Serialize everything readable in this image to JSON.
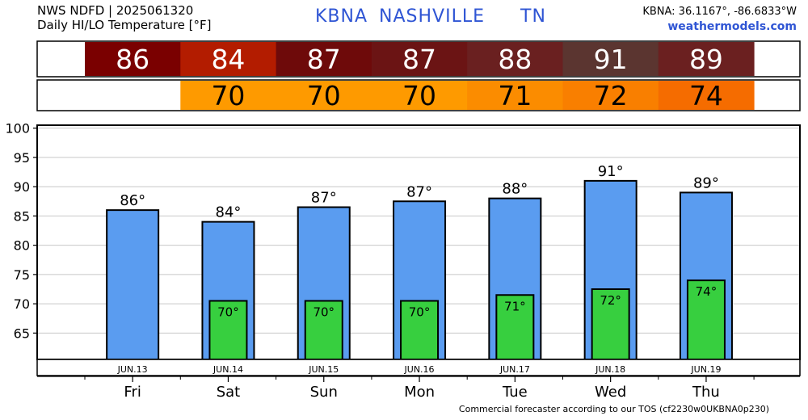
{
  "header": {
    "source": "NWS NDFD | 2025061320",
    "subtitle": "Daily HI/LO Temperature [°F]",
    "station_code": "KBNA",
    "station_name": "NASHVILLE",
    "state": "TN",
    "coords": "KBNA: 36.1167°, -86.6833°W",
    "site": "weathermodels.com"
  },
  "footer": {
    "text": "Commercial forecaster according to our TOS (cf2230w0UKBNA0p230)"
  },
  "chart_data": {
    "type": "bar",
    "categories": [
      "Fri",
      "Sat",
      "Sun",
      "Mon",
      "Tue",
      "Wed",
      "Thu"
    ],
    "dates": [
      "JUN.13",
      "JUN.14",
      "JUN.15",
      "JUN.16",
      "JUN.17",
      "JUN.18",
      "JUN.19"
    ],
    "series": [
      {
        "values": [
          86,
          84,
          87,
          87,
          88,
          91,
          89
        ],
        "color": "#5a9cf0"
      },
      {
        "values": [
          null,
          70,
          70,
          70,
          71,
          72,
          74
        ],
        "color": "#37cf3f"
      }
    ],
    "bar_heights": [
      86,
      84,
      86.5,
      87.5,
      88,
      91,
      89
    ],
    "low_bar_heights": [
      null,
      70.5,
      70.5,
      70.5,
      71.5,
      72.5,
      74
    ],
    "yticks": [
      65,
      70,
      75,
      80,
      85,
      90,
      95,
      100
    ],
    "ylim": [
      60.5,
      100.5
    ],
    "grid": true,
    "high_row_colors": [
      "#7a0000",
      "#b31c00",
      "#6e0a0a",
      "#6b1414",
      "#6a2020",
      "#5b3530",
      "#6b2020"
    ],
    "low_row_colors": [
      null,
      "#fe9a00",
      "#fe9a00",
      "#fe9a00",
      "#fb8c00",
      "#f97f00",
      "#f56c00"
    ]
  }
}
